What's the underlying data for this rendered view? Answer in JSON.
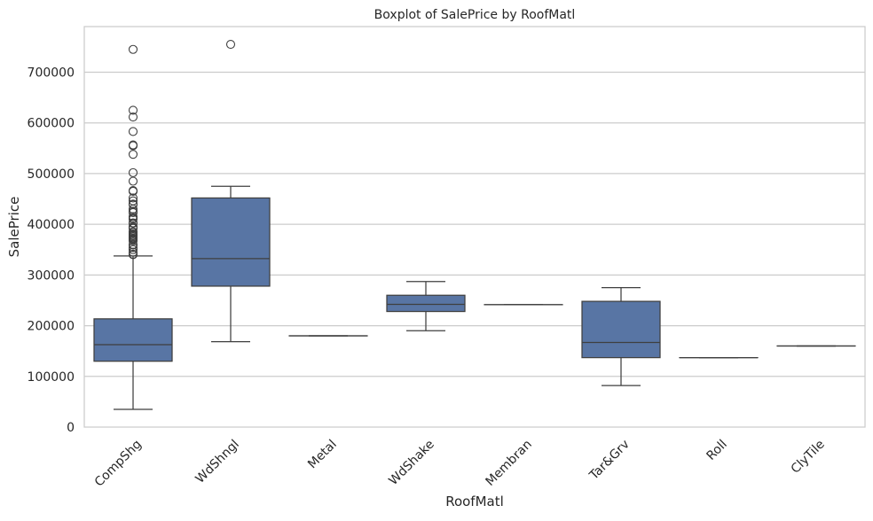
{
  "chart_data": {
    "type": "boxplot",
    "title": "Boxplot of SalePrice by RoofMatl",
    "xlabel": "RoofMatl",
    "ylabel": "SalePrice",
    "ylim": [
      0,
      790000
    ],
    "yticks": [
      0,
      100000,
      200000,
      300000,
      400000,
      500000,
      600000,
      700000
    ],
    "ytick_labels": [
      "0",
      "100000",
      "200000",
      "300000",
      "400000",
      "500000",
      "600000",
      "700000"
    ],
    "grid": true,
    "box_color": "#5875a4",
    "edge_color": "#3f3f3f",
    "grid_color": "#cccccc",
    "categories": [
      "CompShg",
      "WdShngl",
      "Metal",
      "WdShake",
      "Membran",
      "Tar&Grv",
      "Roll",
      "ClyTile"
    ],
    "boxes": [
      {
        "category": "CompShg",
        "whisker_low": 34900,
        "q1": 129900,
        "median": 162500,
        "q3": 213500,
        "whisker_high": 337500,
        "outliers": [
          745000,
          625000,
          611657,
          582933,
          556581,
          555000,
          538000,
          501837,
          485000,
          466500,
          465000,
          451950,
          446261,
          440000,
          438780,
          430000,
          426000,
          423000,
          415298,
          412500,
          410000,
          402861,
          402000,
          395192,
          394617,
          392500,
          392000,
          385000,
          383970,
          381000,
          378500,
          377500,
          377426,
          375000,
          372500,
          372402,
          370878,
          369900,
          367294,
          360000,
          359100,
          354000,
          350000,
          345000,
          341000,
          340000
        ]
      },
      {
        "category": "WdShngl",
        "whisker_low": 168500,
        "q1": 278000,
        "median": 332200,
        "q3": 451950,
        "whisker_high": 475000,
        "outliers": [
          755000
        ]
      },
      {
        "category": "Metal",
        "whisker_low": 180000,
        "q1": 180000,
        "median": 180000,
        "q3": 180000,
        "whisker_high": 180000,
        "outliers": []
      },
      {
        "category": "WdShake",
        "whisker_low": 190000,
        "q1": 228000,
        "median": 242000,
        "q3": 260000,
        "whisker_high": 287000,
        "outliers": []
      },
      {
        "category": "Membran",
        "whisker_low": 241500,
        "q1": 241500,
        "median": 241500,
        "q3": 241500,
        "whisker_high": 241500,
        "outliers": []
      },
      {
        "category": "Tar&Grv",
        "whisker_low": 82000,
        "q1": 137000,
        "median": 167000,
        "q3": 248000,
        "whisker_high": 274970,
        "outliers": []
      },
      {
        "category": "Roll",
        "whisker_low": 137000,
        "q1": 137000,
        "median": 137000,
        "q3": 137000,
        "whisker_high": 137000,
        "outliers": []
      },
      {
        "category": "ClyTile",
        "whisker_low": 160000,
        "q1": 160000,
        "median": 160000,
        "q3": 160000,
        "whisker_high": 160000,
        "outliers": []
      }
    ]
  }
}
